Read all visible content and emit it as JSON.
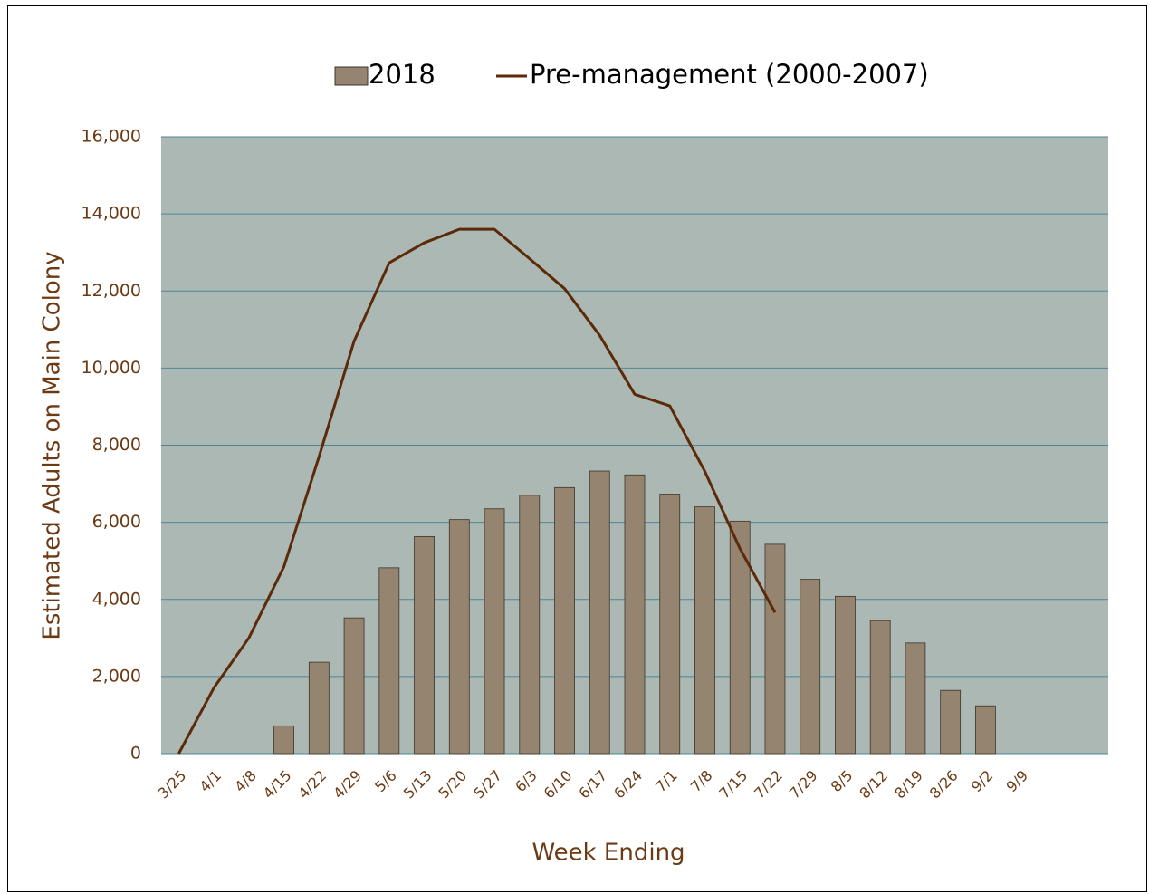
{
  "chart_data": {
    "type": "bar",
    "x_label": "Week Ending",
    "y_label": "Estimated Adults on Main Colony",
    "categories": [
      "3/25",
      "4/1",
      "4/8",
      "4/15",
      "4/22",
      "4/29",
      "5/6",
      "5/13",
      "5/20",
      "5/27",
      "6/3",
      "6/10",
      "6/17",
      "6/24",
      "7/1",
      "7/8",
      "7/15",
      "7/22",
      "7/29",
      "8/5",
      "8/12",
      "8/19",
      "8/26",
      "9/2",
      "9/9",
      null,
      null
    ],
    "series": [
      {
        "name": "2018",
        "type": "bar",
        "color": "#948470",
        "values": [
          null,
          null,
          null,
          720,
          2370,
          3520,
          4820,
          5630,
          6070,
          6350,
          6700,
          6900,
          7330,
          7230,
          6730,
          6400,
          6030,
          5430,
          4520,
          4080,
          3450,
          2870,
          1640,
          1240,
          null,
          null,
          null
        ]
      },
      {
        "name": "Pre-management (2000-2007)",
        "type": "line",
        "color": "#5c2a08",
        "values": [
          0,
          1700,
          3000,
          4850,
          7700,
          10700,
          12730,
          13250,
          13600,
          13600,
          12840,
          12060,
          10850,
          9320,
          9020,
          7320,
          5320,
          3660,
          null,
          null,
          null,
          null,
          null,
          null,
          null,
          null,
          null
        ]
      }
    ],
    "ylim": [
      0,
      16000
    ],
    "yticks": [
      0,
      {
        "value": 2000,
        "label": "2,000"
      },
      {
        "value": 4000,
        "label": "4,000"
      },
      {
        "value": 6000,
        "label": "6,000"
      },
      {
        "value": 8000,
        "label": "8,000"
      },
      {
        "value": 10000,
        "label": "10,000"
      },
      {
        "value": 12000,
        "label": "12,000"
      },
      {
        "value": 14000,
        "label": "14,000"
      },
      {
        "value": 16000,
        "label": "16,000"
      }
    ],
    "grid": true,
    "legend": "top"
  }
}
